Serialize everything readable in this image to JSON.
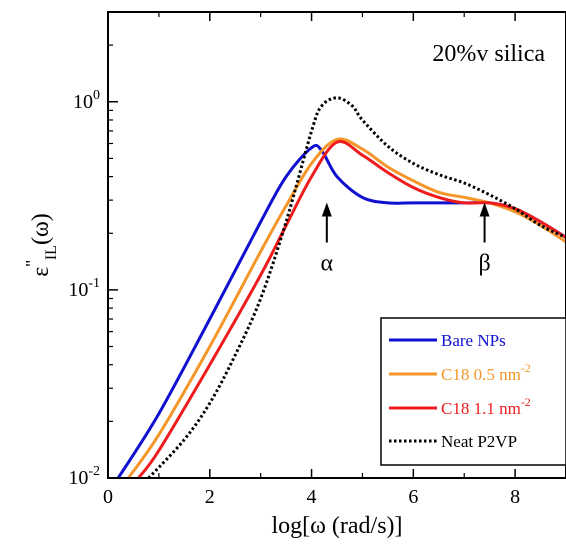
{
  "chart_data": {
    "type": "line",
    "title": "20%v silica",
    "xlabel": "log[ω (rad/s)]",
    "ylabel": {
      "main": "ε",
      "prime": "''",
      "sub": "IL",
      "tail": "(ω)"
    },
    "xlim": [
      0,
      9
    ],
    "ylim": [
      0.01,
      3
    ],
    "yscale": "log",
    "x_ticks": [
      "0",
      "2",
      "4",
      "6",
      "8"
    ],
    "x_tick_values": [
      0,
      2,
      4,
      6,
      8
    ],
    "y_ticks": [
      {
        "base": "10",
        "exp": "-2",
        "value": 0.01
      },
      {
        "base": "10",
        "exp": "-1",
        "value": 0.1
      },
      {
        "base": "10",
        "exp": "0",
        "value": 1
      }
    ],
    "legend_position": "bottom-right",
    "annotations": [
      {
        "text": "α",
        "x": 4.3,
        "y": 0.17
      },
      {
        "text": "β",
        "x": 7.4,
        "y": 0.17
      }
    ],
    "series": [
      {
        "name": "Bare NPs",
        "label": "Bare NPs",
        "color": "#1010d0",
        "dash": "solid",
        "x": [
          0.2,
          1.0,
          2.0,
          3.0,
          3.5,
          4.0,
          4.2,
          4.5,
          5.0,
          5.5,
          6.0,
          7.0,
          7.5,
          8.0,
          8.5,
          9.0
        ],
        "y": [
          0.01,
          0.022,
          0.07,
          0.23,
          0.4,
          0.57,
          0.55,
          0.4,
          0.31,
          0.29,
          0.29,
          0.29,
          0.29,
          0.27,
          0.23,
          0.19
        ]
      },
      {
        "name": "C18 0.5 nm-2",
        "label": "C18 0.5 nm",
        "label_exp": "-2",
        "color": "#f5962a",
        "dash": "solid",
        "x": [
          0.4,
          1.0,
          2.0,
          3.0,
          3.5,
          4.0,
          4.5,
          5.0,
          5.5,
          6.0,
          6.5,
          7.0,
          7.5,
          8.0,
          8.5,
          9.0
        ],
        "y": [
          0.01,
          0.017,
          0.05,
          0.16,
          0.28,
          0.47,
          0.63,
          0.56,
          0.45,
          0.38,
          0.33,
          0.31,
          0.29,
          0.26,
          0.22,
          0.18
        ]
      },
      {
        "name": "C18 1.1 nm-2",
        "label": "C18 1.1 nm",
        "label_exp": "-2",
        "color": "#ee1c1c",
        "dash": "solid",
        "x": [
          0.6,
          1.0,
          2.0,
          3.0,
          3.5,
          4.0,
          4.5,
          5.0,
          5.5,
          6.0,
          6.5,
          7.0,
          7.5,
          8.0,
          8.5,
          9.0
        ],
        "y": [
          0.01,
          0.014,
          0.04,
          0.12,
          0.22,
          0.4,
          0.61,
          0.52,
          0.42,
          0.35,
          0.31,
          0.29,
          0.29,
          0.27,
          0.23,
          0.19
        ]
      },
      {
        "name": "Neat P2VP",
        "label": "Neat P2VP",
        "color": "#000000",
        "dash": "dotted",
        "x": [
          0.8,
          1.5,
          2.0,
          2.5,
          3.0,
          3.5,
          4.0,
          4.2,
          4.5,
          4.8,
          5.0,
          5.5,
          6.0,
          6.5,
          7.0,
          7.5,
          8.0,
          8.5,
          9.0
        ],
        "y": [
          0.01,
          0.016,
          0.025,
          0.045,
          0.09,
          0.23,
          0.7,
          0.95,
          1.05,
          0.95,
          0.8,
          0.58,
          0.47,
          0.41,
          0.37,
          0.32,
          0.27,
          0.22,
          0.19
        ]
      }
    ]
  }
}
